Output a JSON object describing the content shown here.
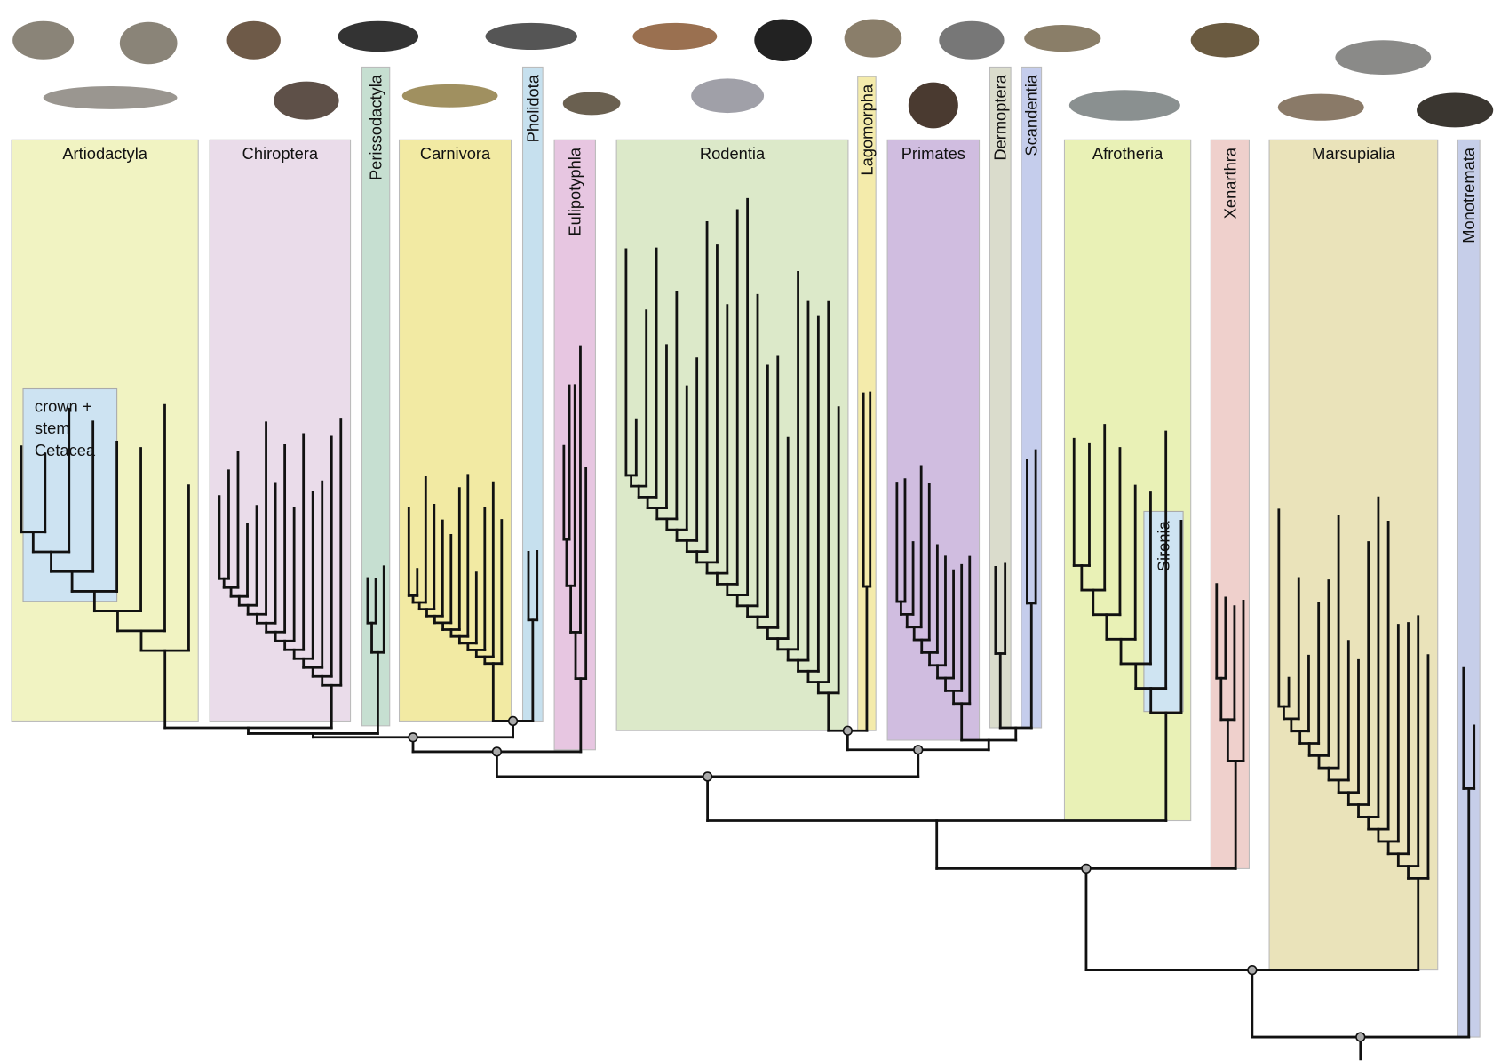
{
  "clades": [
    {
      "label": "Artiodactyla"
    },
    {
      "label": "Chiroptera"
    },
    {
      "label": "Perissodactyla"
    },
    {
      "label": "Carnivora"
    },
    {
      "label": "Pholidota"
    },
    {
      "label": "Eulipotyphla"
    },
    {
      "label": "Rodentia"
    },
    {
      "label": "Lagomorpha"
    },
    {
      "label": "Primates"
    },
    {
      "label": "Dermoptera"
    },
    {
      "label": "Scandentia"
    },
    {
      "label": "Afrotheria"
    },
    {
      "label": "Xenarthra"
    },
    {
      "label": "Marsupialia"
    },
    {
      "label": "Monotremata"
    }
  ],
  "insets": [
    {
      "lines": [
        "crown +",
        "stem",
        "Cetacea"
      ]
    },
    {
      "lines": [
        "Sirenia"
      ]
    }
  ]
}
